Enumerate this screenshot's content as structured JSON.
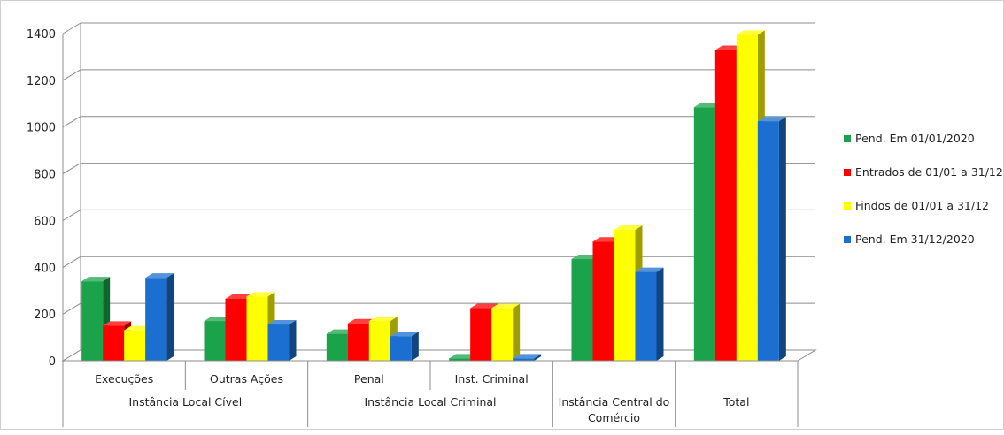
{
  "chart_data": {
    "type": "bar",
    "title": "",
    "xlabel": "",
    "ylabel": "",
    "ylim": [
      0,
      1400
    ],
    "yticks": [
      0,
      200,
      400,
      600,
      800,
      1000,
      1200,
      1400
    ],
    "grid": true,
    "legend_position": "right",
    "categories": [
      "Execuções",
      "Outras Ações",
      "Penal",
      "Inst. Criminal",
      "Instância Central do Comércio",
      "Total"
    ],
    "groups": [
      {
        "label": "Instância Local Cível",
        "categories": [
          "Execuções",
          "Outras Ações"
        ]
      },
      {
        "label": "Instância Local Criminal",
        "categories": [
          "Penal",
          "Inst. Criminal"
        ]
      },
      {
        "label": "",
        "categories": [
          "Instância Central do Comércio"
        ]
      },
      {
        "label": "",
        "categories": [
          "Total"
        ]
      }
    ],
    "series": [
      {
        "name": "Pend. Em 01/01/2020",
        "color": "#1aa34a",
        "values": [
          340,
          170,
          115,
          10,
          435,
          1085
        ]
      },
      {
        "name": "Entrados de 01/01 a 31/12",
        "color": "#ff0000",
        "values": [
          150,
          265,
          160,
          225,
          510,
          1330
        ]
      },
      {
        "name": "Findos de 01/01 a 31/12",
        "color": "#ffff00",
        "values": [
          130,
          275,
          170,
          225,
          560,
          1395
        ]
      },
      {
        "name": "Pend. Em 31/12/2020",
        "color": "#1a6fd0",
        "values": [
          355,
          155,
          105,
          10,
          380,
          1025
        ]
      }
    ]
  }
}
